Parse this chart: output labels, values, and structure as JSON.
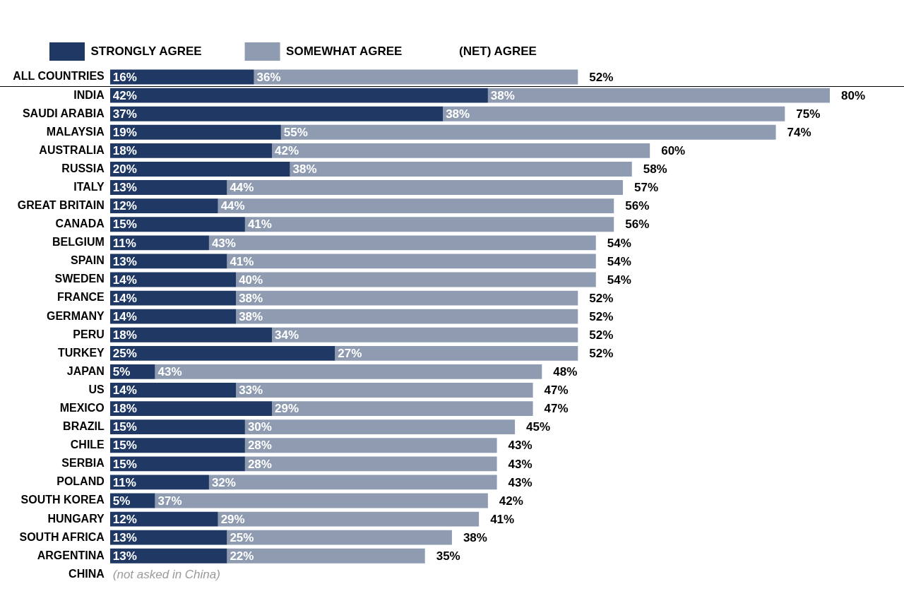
{
  "chart_data": {
    "type": "bar",
    "orientation": "horizontal",
    "stacked": true,
    "legend": "top",
    "tick_labels": "y",
    "grid": false,
    "categories": [
      "ALL COUNTRIES",
      "INDIA",
      "SAUDI ARABIA",
      "MALAYSIA",
      "AUSTRALIA",
      "RUSSIA",
      "ITALY",
      "GREAT BRITAIN",
      "CANADA",
      "BELGIUM",
      "SPAIN",
      "SWEDEN",
      "FRANCE",
      "GERMANY",
      "PERU",
      "TURKEY",
      "JAPAN",
      "US",
      "MEXICO",
      "BRAZIL",
      "CHILE",
      "SERBIA",
      "POLAND",
      "SOUTH KOREA",
      "HUNGARY",
      "SOUTH AFRICA",
      "ARGENTINA",
      "CHINA"
    ],
    "series": [
      {
        "name": "STRONGLY AGREE",
        "color": "#1f3864",
        "values": [
          16,
          42,
          37,
          19,
          18,
          20,
          13,
          12,
          15,
          11,
          13,
          14,
          14,
          14,
          18,
          25,
          5,
          14,
          18,
          15,
          15,
          15,
          11,
          5,
          12,
          13,
          13,
          null
        ],
        "value_labels": [
          "16%",
          "42%",
          "37%",
          "19%",
          "18%",
          "20%",
          "13%",
          "12%",
          "15%",
          "11%",
          "13%",
          "14%",
          "14%",
          "14%",
          "18%",
          "25%",
          "5%",
          "14%",
          "18%",
          "15%",
          "15%",
          "15%",
          "11%",
          "5%",
          "12%",
          "13%",
          "13%",
          null
        ]
      },
      {
        "name": "SOMEWHAT AGREE",
        "color": "#8e9bb0",
        "values": [
          36,
          38,
          38,
          55,
          42,
          38,
          44,
          44,
          41,
          43,
          41,
          40,
          38,
          38,
          34,
          27,
          43,
          33,
          29,
          30,
          28,
          28,
          32,
          37,
          29,
          25,
          22,
          null
        ],
        "value_labels": [
          "36%",
          "38%",
          "38%",
          "55%",
          "42%",
          "38%",
          "44%",
          "44%",
          "41%",
          "43%",
          "41%",
          "40%",
          "38%",
          "38%",
          "34%",
          "27%",
          "43%",
          "33%",
          "29%",
          "30%",
          "28%",
          "28%",
          "32%",
          "37%",
          "29%",
          "25%",
          "22%",
          null
        ]
      }
    ],
    "totals": [
      "52%",
      "80%",
      "75%",
      "74%",
      "60%",
      "58%",
      "57%",
      "56%",
      "56%",
      "54%",
      "54%",
      "54%",
      "52%",
      "52%",
      "52%",
      "52%",
      "48%",
      "47%",
      "47%",
      "45%",
      "43%",
      "43%",
      "43%",
      "42%",
      "41%",
      "38%",
      "35%",
      null
    ],
    "annotations": [
      "(NET) AGREE",
      "(not asked in China)"
    ]
  }
}
